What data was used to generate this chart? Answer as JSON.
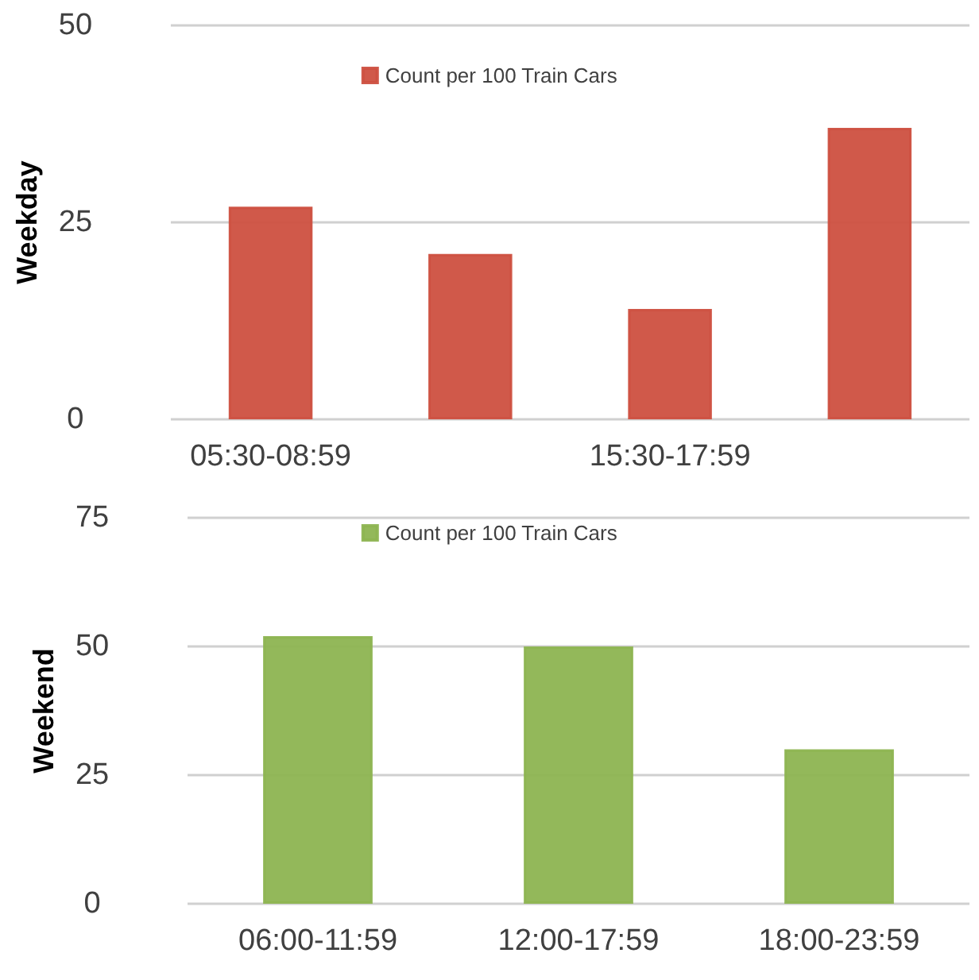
{
  "chart_data": [
    {
      "type": "bar",
      "ylabel": "Weekday",
      "categories": [
        "05:30-08:59",
        null,
        "15:30-17:59",
        null
      ],
      "series": [
        {
          "name": "Count per 100 Train Cars",
          "color": "#cd5040",
          "values": [
            27,
            21,
            14,
            37
          ]
        }
      ],
      "ylim": [
        0,
        50
      ],
      "yticks": [
        0,
        25,
        50
      ],
      "grid": "y",
      "legend": "top"
    },
    {
      "type": "bar",
      "ylabel": "Weekend",
      "categories": [
        "06:00-11:59",
        "12:00-17:59",
        "18:00-23:59"
      ],
      "series": [
        {
          "name": "Count per 100 Train Cars",
          "color": "#8db451",
          "values": [
            52,
            50,
            30
          ]
        }
      ],
      "ylim": [
        0,
        75
      ],
      "yticks": [
        0,
        25,
        50,
        75
      ],
      "grid": "y",
      "legend": "top"
    }
  ]
}
